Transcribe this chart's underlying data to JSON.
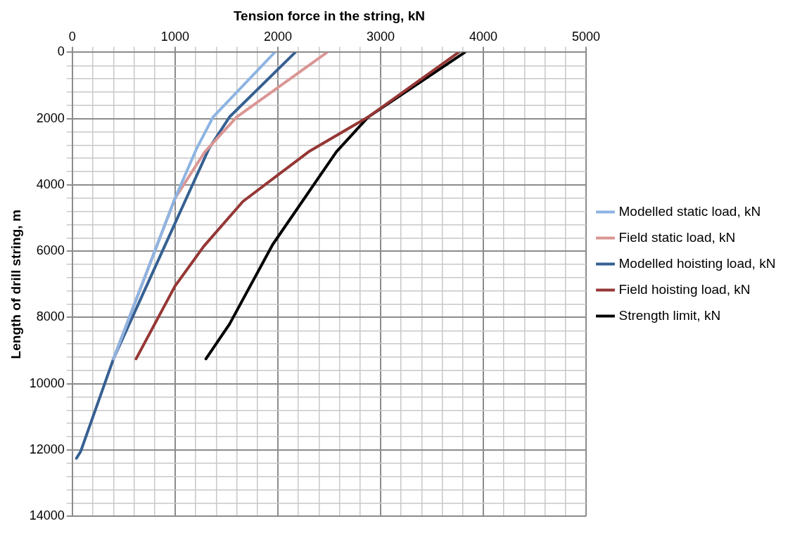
{
  "chart_data": {
    "type": "line",
    "xlabel": "Tension force in the string, kN",
    "ylabel": "Length of drill string, m",
    "xlim": [
      0,
      5000
    ],
    "ylim": [
      14000,
      0
    ],
    "xticks": [
      0,
      {
        "value": 200,
        "label": null
      },
      {
        "value": 400,
        "label": null
      },
      {
        "value": 600,
        "label": null
      },
      {
        "value": 800,
        "label": null
      },
      1000,
      {
        "value": 1200,
        "label": null
      },
      {
        "value": 1400,
        "label": null
      },
      {
        "value": 1600,
        "label": null
      },
      {
        "value": 1800,
        "label": null
      },
      2000,
      {
        "value": 2200,
        "label": null
      },
      {
        "value": 2400,
        "label": null
      },
      {
        "value": 2600,
        "label": null
      },
      {
        "value": 2800,
        "label": null
      },
      3000,
      {
        "value": 3200,
        "label": null
      },
      {
        "value": 3400,
        "label": null
      },
      {
        "value": 3600,
        "label": null
      },
      {
        "value": 3800,
        "label": null
      },
      4000,
      {
        "value": 4200,
        "label": null
      },
      {
        "value": 4400,
        "label": null
      },
      {
        "value": 4600,
        "label": null
      },
      {
        "value": 4800,
        "label": null
      },
      5000
    ],
    "yticks": [
      0,
      {
        "value": 400,
        "label": null
      },
      {
        "value": 800,
        "label": null
      },
      {
        "value": 1200,
        "label": null
      },
      {
        "value": 1600,
        "label": null
      },
      2000,
      {
        "value": 2400,
        "label": null
      },
      {
        "value": 2800,
        "label": null
      },
      {
        "value": 3200,
        "label": null
      },
      {
        "value": 3600,
        "label": null
      },
      4000,
      {
        "value": 4400,
        "label": null
      },
      {
        "value": 4800,
        "label": null
      },
      {
        "value": 5200,
        "label": null
      },
      {
        "value": 5600,
        "label": null
      },
      6000,
      {
        "value": 6400,
        "label": null
      },
      {
        "value": 6800,
        "label": null
      },
      {
        "value": 7200,
        "label": null
      },
      {
        "value": 7600,
        "label": null
      },
      8000,
      {
        "value": 8400,
        "label": null
      },
      {
        "value": 8800,
        "label": null
      },
      {
        "value": 9200,
        "label": null
      },
      {
        "value": 9600,
        "label": null
      },
      10000,
      {
        "value": 10400,
        "label": null
      },
      {
        "value": 10800,
        "label": null
      },
      {
        "value": 11200,
        "label": null
      },
      {
        "value": 11600,
        "label": null
      },
      12000,
      {
        "value": 12400,
        "label": null
      },
      {
        "value": 12800,
        "label": null
      },
      {
        "value": 13200,
        "label": null
      },
      {
        "value": 13600,
        "label": null
      },
      14000
    ],
    "grid": true,
    "legend": "right",
    "marker": "none",
    "line_style": "solid",
    "series": [
      {
        "name": "Modelled static load, kN",
        "color": "#8db4e2",
        "x": [
          1970,
          1370,
          1210,
          1000,
          400
        ],
        "values": [
          0,
          1950,
          2900,
          4400,
          9250
        ]
      },
      {
        "name": "Field static load, kN",
        "color": "#da9694",
        "x": [
          2480,
          1600,
          1290,
          1000,
          400
        ],
        "values": [
          0,
          1950,
          3000,
          4400,
          9250
        ]
      },
      {
        "name": "Modelled hoisting load, kN",
        "color": "#366092",
        "x": [
          2170,
          1530,
          1330,
          400,
          80,
          40
        ],
        "values": [
          0,
          1950,
          2900,
          9250,
          12050,
          12250
        ]
      },
      {
        "name": "Field hoisting load, kN",
        "color": "#953735",
        "x": [
          3760,
          2880,
          2300,
          1660,
          1280,
          1000,
          620
        ],
        "values": [
          0,
          1950,
          3000,
          4500,
          5850,
          7050,
          9250
        ]
      },
      {
        "name": "Strength limit, kN",
        "color": "#000000",
        "x": [
          3820,
          2880,
          2570,
          1950,
          1530,
          1300
        ],
        "values": [
          0,
          1950,
          3000,
          5800,
          8200,
          9250
        ]
      }
    ]
  }
}
